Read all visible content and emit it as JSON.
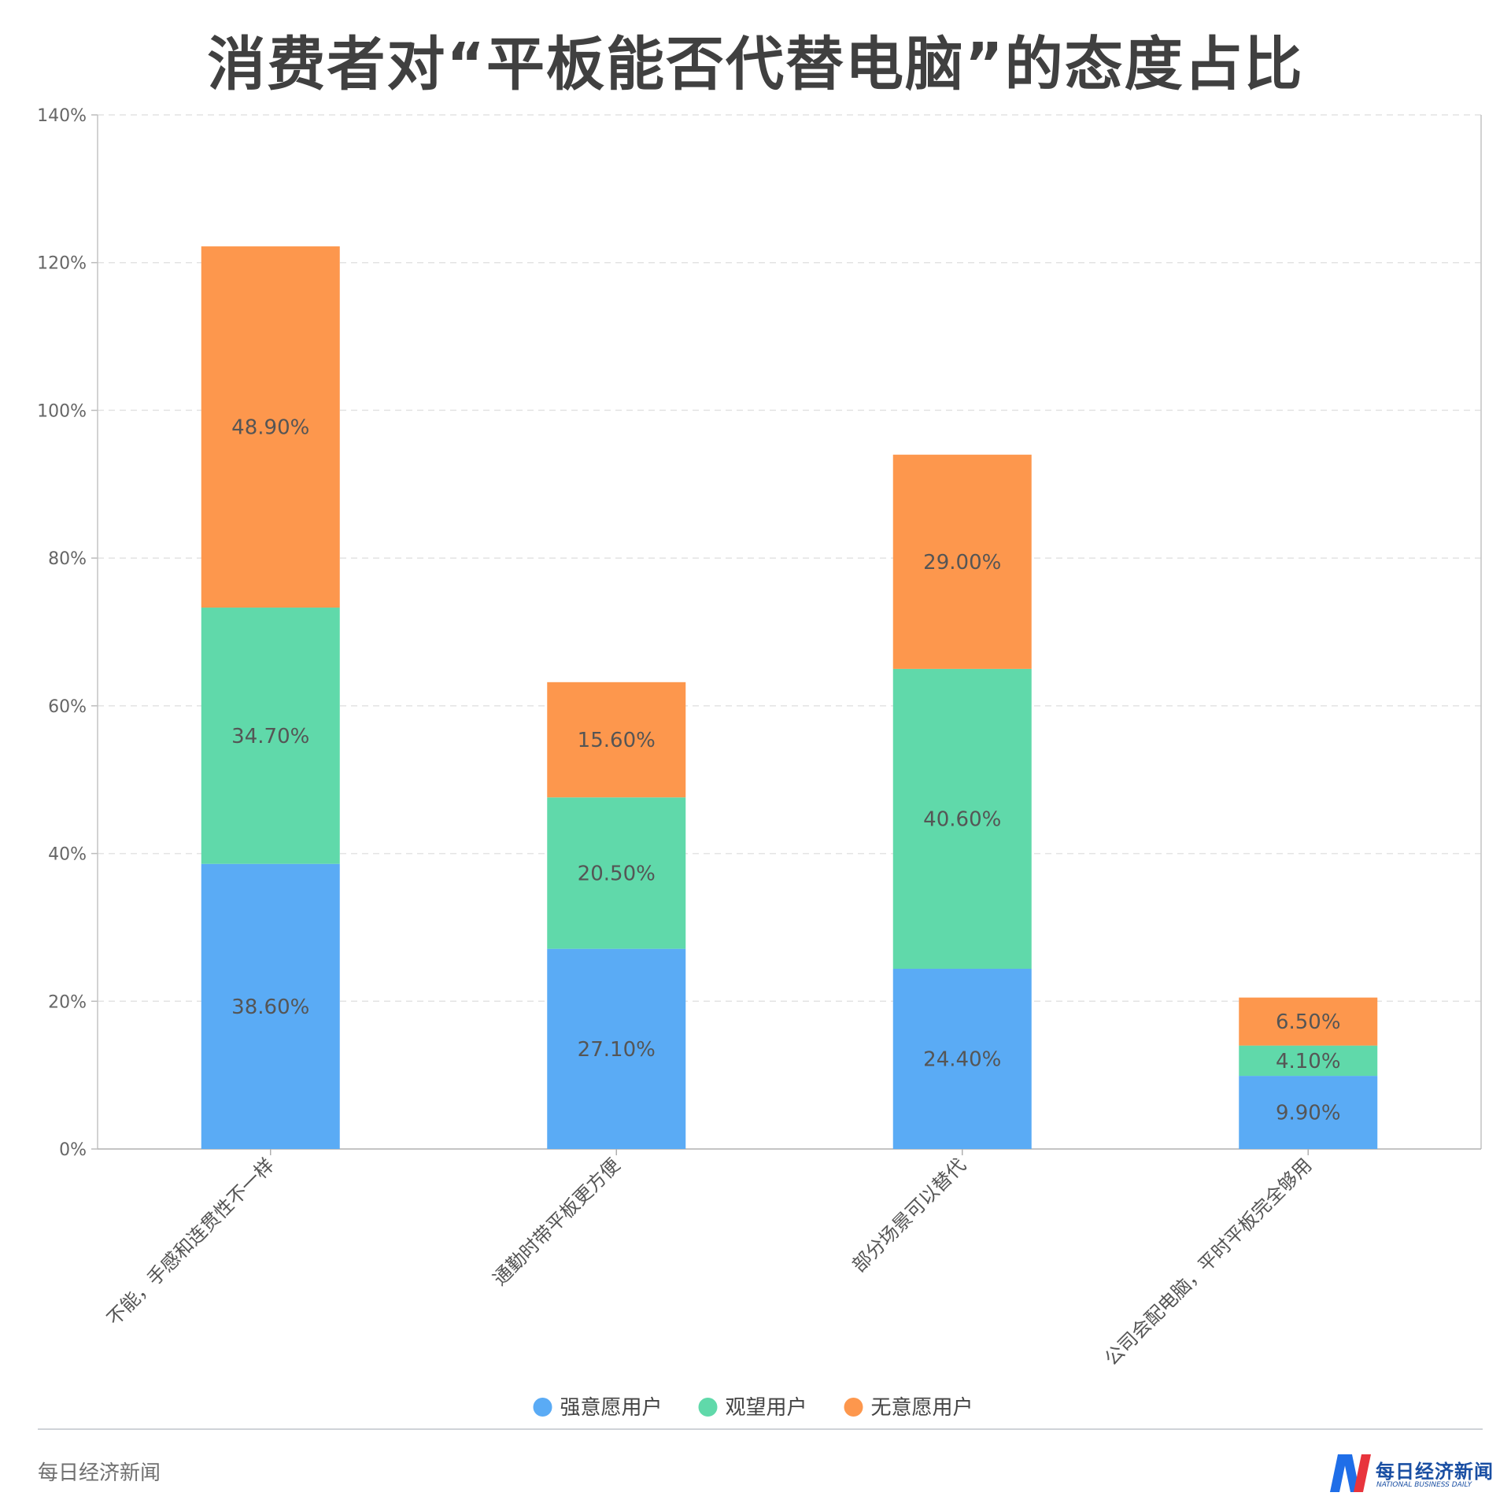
{
  "title": "消费者对“平板能否代替电脑”的态度占比",
  "chart_data": {
    "type": "bar",
    "stacked": true,
    "categories": [
      "不能，手感和连贯性不一样",
      "通勤时带平板更方便",
      "部分场景可以替代",
      "公司会配电脑，平时平板完全够用"
    ],
    "series": [
      {
        "name": "强意愿用户",
        "color": "#5aabf5",
        "values": [
          38.6,
          27.1,
          24.4,
          9.9
        ],
        "labels": [
          "38.60%",
          "27.10%",
          "24.40%",
          "9.90%"
        ]
      },
      {
        "name": "观望用户",
        "color": "#60d9aa",
        "values": [
          34.7,
          20.5,
          40.6,
          4.1
        ],
        "labels": [
          "34.70%",
          "20.50%",
          "40.60%",
          "4.10%"
        ]
      },
      {
        "name": "无意愿用户",
        "color": "#fd974d",
        "values": [
          48.9,
          15.6,
          29.0,
          6.5
        ],
        "labels": [
          "48.90%",
          "15.60%",
          "29.00%",
          "6.50%"
        ]
      }
    ],
    "ylim": [
      0,
      140
    ],
    "yticks": [
      0,
      20,
      40,
      60,
      80,
      100,
      120,
      140
    ],
    "ytick_labels": [
      "0%",
      "20%",
      "40%",
      "60%",
      "80%",
      "100%",
      "120%",
      "140%"
    ],
    "grid": true,
    "legend_position": "bottom-center"
  },
  "footer": {
    "source": "每日经济新闻",
    "logo_cn": "每日经济新闻",
    "logo_en": "NATIONAL BUSINESS DAILY"
  }
}
